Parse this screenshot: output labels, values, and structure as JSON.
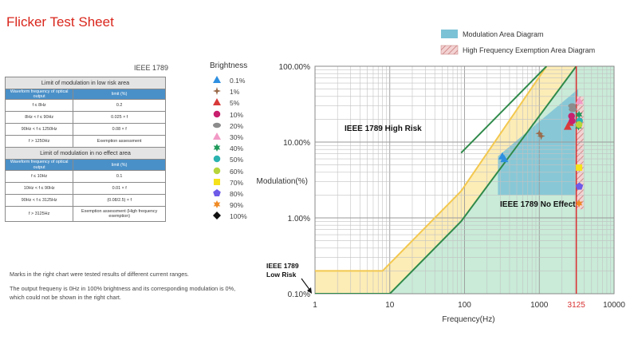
{
  "page": {
    "title": "Flicker Test Sheet",
    "standard_label": "IEEE 1789",
    "brightness_label": "Brightness"
  },
  "low_risk_table": {
    "caption": "Limit of modulation in low risk area",
    "headers": [
      "Waveform frequency of optical output",
      "limit (%)"
    ],
    "rows": [
      [
        "f ≤ 8Hz",
        "0.2"
      ],
      [
        "8Hz < f ≤ 90Hz",
        "0.025 × f"
      ],
      [
        "90Hz < f ≤ 1250Hz",
        "0.08 × f"
      ],
      [
        "f > 1250Hz",
        "Exemption assessment"
      ]
    ]
  },
  "no_effect_table": {
    "caption": "Limit of modulation in no effect area",
    "headers": [
      "Waveform frequency of optical output",
      "limit (%)"
    ],
    "rows": [
      [
        "f ≤ 10Hz",
        "0.1"
      ],
      [
        "10Hz < f ≤ 90Hz",
        "0.01 × f"
      ],
      [
        "90Hz < f ≤ 3125Hz",
        "(0.08/2.5) × f"
      ],
      [
        "f > 3125Hz",
        "Exemption assessment (High frequency exemption)"
      ]
    ]
  },
  "notes": [
    "Marks in the right chart were tested results of different current ranges.",
    "The output frequeny is 0Hz in 100% brightness and its corresponding modulation is 0%, which could not be shown in the right chart."
  ],
  "brightness_legend": [
    {
      "label": "0.1%",
      "color": "#2e8fe0",
      "icon": "triangle-icon"
    },
    {
      "label": "1%",
      "color": "#9a6a4a",
      "icon": "star4-icon"
    },
    {
      "label": "5%",
      "color": "#d83a3a",
      "icon": "triangle-icon"
    },
    {
      "label": "10%",
      "color": "#c8206e",
      "icon": "circle-icon"
    },
    {
      "label": "20%",
      "color": "#8c8c8c",
      "icon": "ellipse-icon"
    },
    {
      "label": "30%",
      "color": "#f29ac6",
      "icon": "triangle-icon"
    },
    {
      "label": "40%",
      "color": "#1f9a5a",
      "icon": "star6-icon"
    },
    {
      "label": "50%",
      "color": "#2bb3b0",
      "icon": "circle-icon"
    },
    {
      "label": "60%",
      "color": "#b7d53a",
      "icon": "circle-icon"
    },
    {
      "label": "70%",
      "color": "#f5e21a",
      "icon": "square-icon"
    },
    {
      "label": "80%",
      "color": "#6e5be8",
      "icon": "pentagon-icon"
    },
    {
      "label": "90%",
      "color": "#f08a24",
      "icon": "star6-icon"
    },
    {
      "label": "100%",
      "color": "#111111",
      "icon": "diamond-icon"
    }
  ],
  "chart_data": {
    "type": "scatter",
    "xscale": "log",
    "yscale": "log",
    "xlabel": "Frequency(Hz)",
    "ylabel": "Modulation(%)",
    "xlim": [
      1,
      10000
    ],
    "ylim": [
      0.1,
      100
    ],
    "x_ticks": [
      "1",
      "10",
      "100",
      "1000",
      "3125",
      "10000"
    ],
    "y_ticks": [
      "0.10%",
      "1.00%",
      "10.00%",
      "100.00%"
    ],
    "highlight_tick": "3125",
    "legend": [
      {
        "label": "Modulation Area Diagram",
        "color": "#7cc2d6"
      },
      {
        "label": "High Frequency Exemption Area Diagram",
        "color": "#e8a6a6"
      }
    ],
    "region_labels": {
      "high_risk": "IEEE 1789 High Risk",
      "no_effect": "IEEE 1789 No Effect",
      "low_risk": "IEEE 1789\nLow Risk"
    },
    "series": [
      {
        "name": "0.1%",
        "points": [
          [
            320,
            6.5
          ],
          [
            340,
            6.0
          ]
        ]
      },
      {
        "name": "1%",
        "points": [
          [
            1000,
            13
          ],
          [
            1060,
            12
          ]
        ]
      },
      {
        "name": "5%",
        "points": [
          [
            2400,
            16
          ],
          [
            2560,
            18
          ]
        ]
      },
      {
        "name": "10%",
        "points": [
          [
            2700,
            22
          ],
          [
            2750,
            19
          ]
        ]
      },
      {
        "name": "20%",
        "points": [
          [
            2750,
            30
          ],
          [
            2800,
            27
          ]
        ]
      },
      {
        "name": "30%",
        "points": [
          [
            3420,
            35
          ]
        ]
      },
      {
        "name": "40%",
        "points": [
          [
            3400,
            23
          ],
          [
            3350,
            16
          ]
        ]
      },
      {
        "name": "50%",
        "points": [
          [
            3450,
            19
          ]
        ]
      },
      {
        "name": "60%",
        "points": [
          [
            3400,
            17
          ]
        ]
      },
      {
        "name": "70%",
        "points": [
          [
            3400,
            4.6
          ]
        ]
      },
      {
        "name": "80%",
        "points": [
          [
            3430,
            2.6
          ]
        ]
      },
      {
        "name": "90%",
        "points": [
          [
            3400,
            1.55
          ]
        ]
      },
      {
        "name": "100%",
        "points": []
      }
    ]
  }
}
